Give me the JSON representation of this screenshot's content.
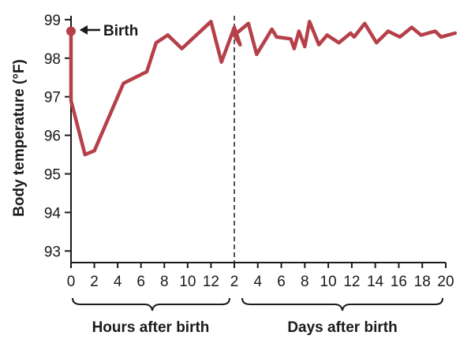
{
  "chart_data": {
    "type": "line",
    "ylabel": "Body temperature (°F)",
    "ylim": [
      92.7,
      99.1
    ],
    "y_ticks": [
      93,
      94,
      95,
      96,
      97,
      98,
      99
    ],
    "x_segments": [
      {
        "label": "Hours after birth",
        "ticks": [
          "0",
          "2",
          "4",
          "6",
          "8",
          "10",
          "12"
        ],
        "range": [
          0,
          14
        ]
      },
      {
        "label": "Days after birth",
        "ticks": [
          "2",
          "4",
          "6",
          "8",
          "10",
          "12",
          "14",
          "16",
          "18",
          "20"
        ],
        "range": [
          2,
          20
        ]
      }
    ],
    "annotation": "Birth",
    "line_color": "#b5404a",
    "series": [
      {
        "hours_points": [
          {
            "x": 0,
            "y": 98.7
          },
          {
            "x": 0,
            "y": 96.9
          },
          {
            "x": 1.2,
            "y": 95.5
          },
          {
            "x": 2,
            "y": 95.6
          },
          {
            "x": 3,
            "y": 96.3
          },
          {
            "x": 4.5,
            "y": 97.35
          },
          {
            "x": 6.5,
            "y": 97.65
          },
          {
            "x": 7.3,
            "y": 98.4
          },
          {
            "x": 8.3,
            "y": 98.6
          },
          {
            "x": 9.5,
            "y": 98.25
          },
          {
            "x": 12,
            "y": 98.95
          },
          {
            "x": 12.9,
            "y": 97.9
          },
          {
            "x": 14,
            "y": 98.8
          },
          {
            "x": 14.5,
            "y": 98.35
          }
        ],
        "days_points": [
          {
            "x": 2,
            "y": 98.6
          },
          {
            "x": 3.2,
            "y": 98.9
          },
          {
            "x": 3.9,
            "y": 98.1
          },
          {
            "x": 5.2,
            "y": 98.75
          },
          {
            "x": 5.6,
            "y": 98.55
          },
          {
            "x": 6.8,
            "y": 98.5
          },
          {
            "x": 7.1,
            "y": 98.25
          },
          {
            "x": 7.5,
            "y": 98.7
          },
          {
            "x": 8.0,
            "y": 98.3
          },
          {
            "x": 8.4,
            "y": 98.95
          },
          {
            "x": 9.2,
            "y": 98.35
          },
          {
            "x": 9.9,
            "y": 98.6
          },
          {
            "x": 10.9,
            "y": 98.4
          },
          {
            "x": 11.9,
            "y": 98.65
          },
          {
            "x": 12.2,
            "y": 98.55
          },
          {
            "x": 13.1,
            "y": 98.9
          },
          {
            "x": 14.1,
            "y": 98.4
          },
          {
            "x": 15.1,
            "y": 98.7
          },
          {
            "x": 16.1,
            "y": 98.55
          },
          {
            "x": 17.1,
            "y": 98.8
          },
          {
            "x": 17.9,
            "y": 98.6
          },
          {
            "x": 19.1,
            "y": 98.7
          },
          {
            "x": 19.6,
            "y": 98.55
          },
          {
            "x": 20.8,
            "y": 98.65
          }
        ]
      }
    ]
  }
}
